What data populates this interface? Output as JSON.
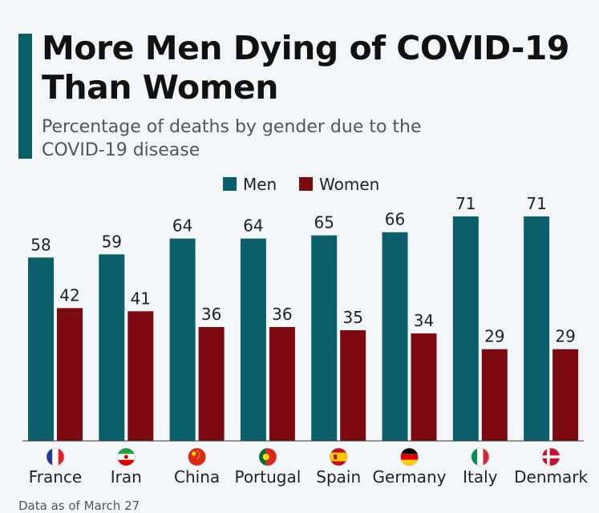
{
  "colors": {
    "men": "#0b5f6b",
    "women": "#7c0a10",
    "accent": "#0b5f6b"
  },
  "chart_data": {
    "type": "bar",
    "title": "More Men Dying of COVID-19 Than Women",
    "subtitle": "Percentage of deaths by gender due to the COVID-19 disease",
    "categories": [
      "France",
      "Iran",
      "China",
      "Portugal",
      "Spain",
      "Germany",
      "Italy",
      "Denmark"
    ],
    "flag_icons": [
      "france-flag-icon",
      "iran-flag-icon",
      "china-flag-icon",
      "portugal-flag-icon",
      "spain-flag-icon",
      "germany-flag-icon",
      "italy-flag-icon",
      "denmark-flag-icon"
    ],
    "series": [
      {
        "name": "Men",
        "values": [
          58,
          59,
          64,
          64,
          65,
          66,
          71,
          71
        ]
      },
      {
        "name": "Women",
        "values": [
          42,
          41,
          36,
          36,
          35,
          34,
          29,
          29
        ]
      }
    ],
    "ylim": [
      0,
      71
    ],
    "xlabel": "",
    "ylabel": "",
    "grid": false,
    "legend": "top-center"
  },
  "footnote": "Data as of March 27"
}
